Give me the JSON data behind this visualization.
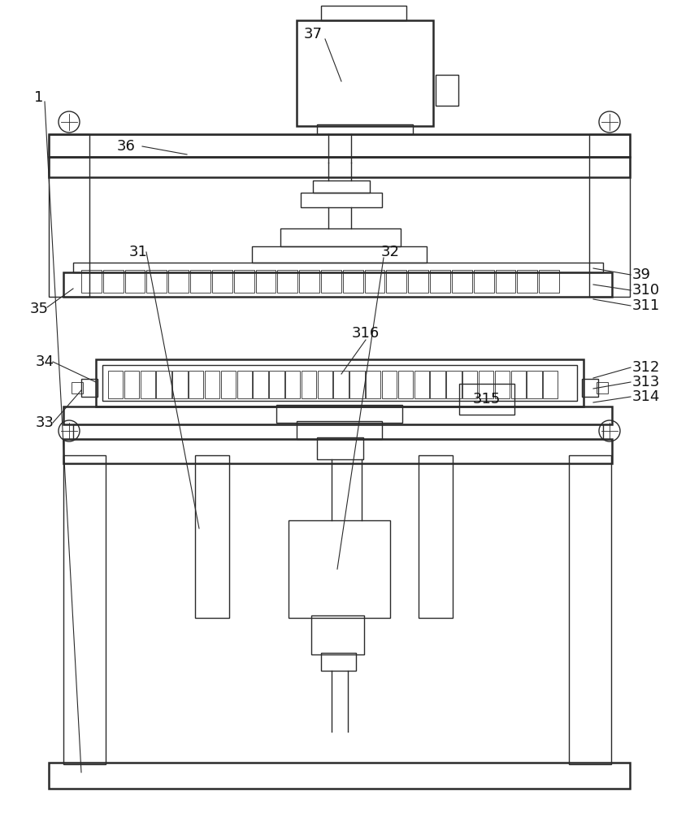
{
  "bg_color": "#ffffff",
  "line_color": "#2a2a2a",
  "lw": 1.0,
  "lw2": 1.8,
  "lw3": 0.6
}
